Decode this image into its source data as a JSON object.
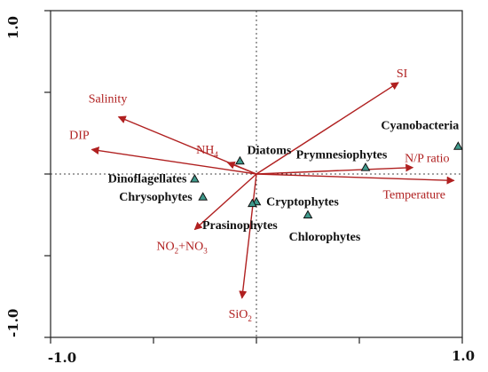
{
  "chart_data": {
    "type": "scatter",
    "title": "",
    "xlabel": "",
    "ylabel": "",
    "xlim": [
      -1.0,
      1.0
    ],
    "ylim": [
      -1.0,
      1.0
    ],
    "grid": false,
    "x_tick_labels": [
      "-1.0",
      "1.0"
    ],
    "y_tick_labels": [
      "1.0",
      "-1.0"
    ],
    "colors": {
      "vector": "#b02020",
      "point_fill": "#3f9a8c",
      "point_stroke": "#111111",
      "axes": "#222222"
    },
    "vectors": [
      {
        "label": "SI",
        "x": 0.69,
        "y": 0.56
      },
      {
        "label": "Salinity",
        "x": -0.67,
        "y": 0.35
      },
      {
        "label": "DIP",
        "x": -0.8,
        "y": 0.15
      },
      {
        "label": "NH",
        "sub": "4",
        "x": -0.14,
        "y": 0.07
      },
      {
        "label": "N/P  ratio",
        "x": 0.76,
        "y": 0.04
      },
      {
        "label": "Temperature",
        "x": 0.96,
        "y": -0.04
      },
      {
        "label": "NO",
        "sub": "2",
        "mid": "+NO",
        "sub2": "3",
        "x": -0.3,
        "y": -0.34
      },
      {
        "label": "SiO",
        "sub": "2",
        "x": -0.07,
        "y": -0.76
      }
    ],
    "points": [
      {
        "label": "Cyanobacteria",
        "x": 0.98,
        "y": 0.17
      },
      {
        "label": "Prymnesiophytes",
        "x": 0.53,
        "y": 0.04
      },
      {
        "label": "Diatoms",
        "x": -0.08,
        "y": 0.08
      },
      {
        "label": "Dinoflagellates",
        "x": -0.3,
        "y": -0.03
      },
      {
        "label": "Chrysophytes",
        "x": -0.26,
        "y": -0.14
      },
      {
        "label": "Cryptophytes",
        "x": 0.0,
        "y": -0.17
      },
      {
        "label": "Prasinophytes",
        "x": -0.02,
        "y": -0.18
      },
      {
        "label": "Chlorophytes",
        "x": 0.25,
        "y": -0.25
      }
    ]
  }
}
